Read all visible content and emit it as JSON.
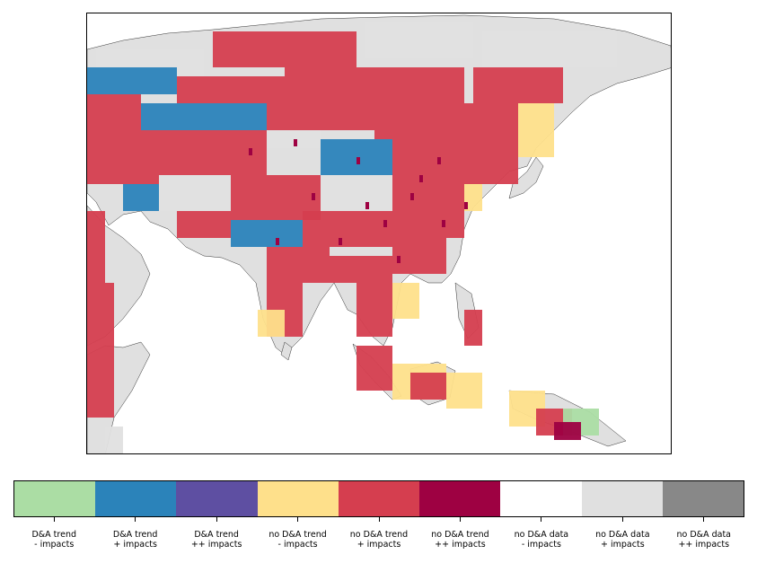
{
  "map": {
    "region": "South, East and Southeast Asia",
    "colors": {
      "light_green": "#abdda4",
      "blue": "#2b83ba",
      "purple": "#5e4fa2",
      "yellow": "#fee08b",
      "red": "#d53e4f",
      "dark_red": "#9e0142",
      "white": "#ffffff",
      "light_gray": "#e0e0e0",
      "gray": "#888888"
    }
  },
  "legend": {
    "items": [
      {
        "line1": "D&A trend",
        "line2": "- impacts",
        "color": "#abdda4"
      },
      {
        "line1": "D&A trend",
        "line2": "+ impacts",
        "color": "#2b83ba"
      },
      {
        "line1": "D&A trend",
        "line2": "++ impacts",
        "color": "#5e4fa2"
      },
      {
        "line1": "no D&A trend",
        "line2": "- impacts",
        "color": "#fee08b"
      },
      {
        "line1": "no D&A trend",
        "line2": "+ impacts",
        "color": "#d53e4f"
      },
      {
        "line1": "no D&A trend",
        "line2": "++ impacts",
        "color": "#9e0142"
      },
      {
        "line1": "no D&A data",
        "line2": "- impacts",
        "color": "#ffffff"
      },
      {
        "line1": "no D&A data",
        "line2": "+ impacts",
        "color": "#e0e0e0"
      },
      {
        "line1": "no D&A data",
        "line2": "++ impacts",
        "color": "#888888"
      }
    ]
  }
}
